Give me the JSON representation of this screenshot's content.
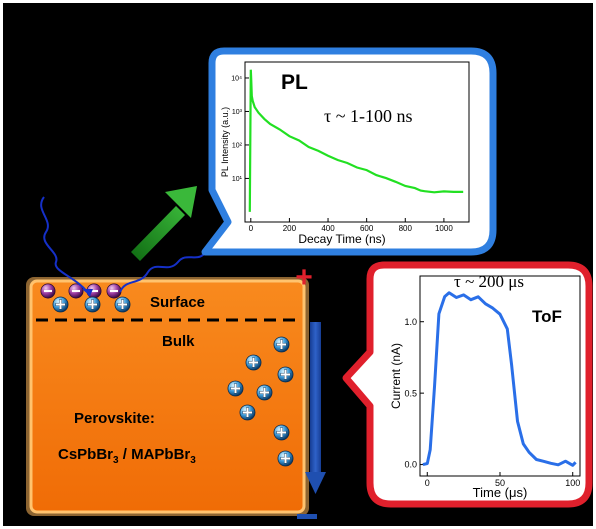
{
  "colors": {
    "background": "#000000",
    "slab": "#f47a10",
    "slab_glow": "#ffb65a",
    "pl_border": "#2f7fe0",
    "pl_curve": "#22e022",
    "tof_border": "#e0202c",
    "tof_curve": "#2a6fe8",
    "arrow_green": "#1e8f1e",
    "arrow_blue": "#1f4fb0",
    "photon_wave": "#1530c8"
  },
  "icons": {
    "electron": "minus-sphere",
    "hole": "plus-sphere"
  },
  "perovskite": {
    "surface_label": "Surface",
    "bulk_label": "Bulk",
    "material_label": "Perovskite:",
    "composition": {
      "part1": "CsPbBr",
      "sub1": "3",
      "part2": " / MAPbBr",
      "sub2": "3"
    },
    "plus_sign": "+",
    "minus_sign": "−"
  },
  "pl_panel": {
    "title": "PL",
    "lifetime": "τ ~ 1-100 ns",
    "ylabel": "PL Intensity (a.u.)",
    "xlabel": "Decay Time (ns)"
  },
  "tof_panel": {
    "title": "ToF",
    "lifetime": "τ ~ 200 μs",
    "ylabel": "Current (nA)",
    "xlabel": "Time (μs)"
  },
  "chart_data": [
    {
      "type": "line",
      "title": "PL",
      "xlabel": "Decay Time (ns)",
      "ylabel": "PL Intensity (a.u.)",
      "y_scale": "log",
      "xlim": [
        -30,
        1130
      ],
      "ylim": [
        0.5,
        30000
      ],
      "xticks": [
        0,
        200,
        400,
        600,
        800,
        1000
      ],
      "yticks": [
        {
          "value": 10,
          "label": "10¹"
        },
        {
          "value": 100,
          "label": "10²"
        },
        {
          "value": 1000,
          "label": "10³"
        },
        {
          "value": 10000,
          "label": "10⁴"
        }
      ],
      "series": [
        {
          "x": [
            -5,
            0,
            2,
            5,
            10,
            20,
            40,
            70,
            100,
            150,
            200,
            250,
            300,
            350,
            400,
            450,
            500,
            550,
            600,
            650,
            700,
            750,
            800,
            850,
            880,
            900,
            950,
            1000,
            1050,
            1100
          ],
          "y": [
            1,
            18000,
            9000,
            3000,
            2000,
            1400,
            900,
            600,
            430,
            280,
            190,
            130,
            90,
            65,
            48,
            36,
            28,
            22,
            17,
            13,
            10,
            8,
            6,
            5,
            4.5,
            4,
            4,
            4,
            4,
            4
          ]
        }
      ]
    },
    {
      "type": "line",
      "title": "ToF",
      "xlabel": "Time (μs)",
      "ylabel": "Current (nA)",
      "xlim": [
        -5,
        105
      ],
      "ylim": [
        -0.08,
        1.32
      ],
      "xticks": [
        0,
        50,
        100
      ],
      "yticks": [
        0.0,
        0.5,
        1.0
      ],
      "series": [
        {
          "x": [
            -3,
            0,
            2,
            5,
            8,
            12,
            15,
            20,
            25,
            30,
            35,
            40,
            45,
            50,
            55,
            58,
            62,
            66,
            70,
            75,
            80,
            85,
            90,
            95,
            100,
            102
          ],
          "y": [
            0.0,
            0.01,
            0.1,
            0.55,
            1.05,
            1.18,
            1.2,
            1.17,
            1.19,
            1.15,
            1.18,
            1.12,
            1.1,
            1.05,
            0.95,
            0.7,
            0.3,
            0.15,
            0.08,
            0.04,
            0.02,
            0.01,
            0.0,
            0.02,
            0.0,
            0.01
          ]
        }
      ]
    }
  ]
}
